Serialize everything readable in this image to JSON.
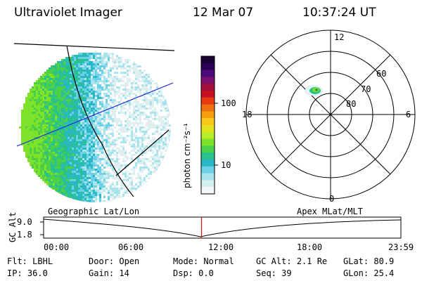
{
  "header": {
    "instrument": "Ultraviolet Imager",
    "date": "12 Mar 07",
    "time": "10:37:24 UT"
  },
  "colorbar": {
    "unit_label": "photon cm⁻²s⁻¹",
    "ticks": [
      "100",
      "10"
    ],
    "colors": [
      "#1a0033",
      "#2b0057",
      "#4b0a7a",
      "#7a0f6e",
      "#a0103a",
      "#c81020",
      "#e63a10",
      "#f07010",
      "#f6a010",
      "#f6c81a",
      "#e2e21c",
      "#b8ec26",
      "#7ee22a",
      "#4cd04a",
      "#2ac28c",
      "#2ab8c6",
      "#6cd0e6",
      "#a8e4ee",
      "#d4eef0",
      "#f2f6f6"
    ]
  },
  "polar": {
    "mlt_labels": [
      "12",
      "18",
      "6",
      "0"
    ],
    "lat_labels": [
      "60",
      "70",
      "80"
    ]
  },
  "timeline": {
    "left_label": "Geographic Lat/Lon",
    "right_label": "Apex MLat/MLT",
    "axis_title": "GC Alt",
    "y_ticks": [
      "9.0",
      "1.8"
    ],
    "x_ticks": [
      "00:00",
      "06:00",
      "12:00",
      "18:00",
      "23:59"
    ],
    "current_time_fraction": 0.442
  },
  "footer": {
    "rows": [
      [
        {
          "label": "Flt:",
          "value": "LBHL"
        },
        {
          "label": "Door:",
          "value": "Open"
        },
        {
          "label": "Mode:",
          "value": "Normal"
        },
        {
          "label": "GC Alt:",
          "value": "2.1 Re"
        },
        {
          "label": "GLat:",
          "value": "80.9"
        }
      ],
      [
        {
          "label": "IP:",
          "value": "36.0"
        },
        {
          "label": "Gain:",
          "value": "14"
        },
        {
          "label": "Dsp:",
          "value": "0.0"
        },
        {
          "label": "Seq:",
          "value": "39"
        },
        {
          "label": "GLon:",
          "value": "25.4"
        }
      ]
    ]
  }
}
